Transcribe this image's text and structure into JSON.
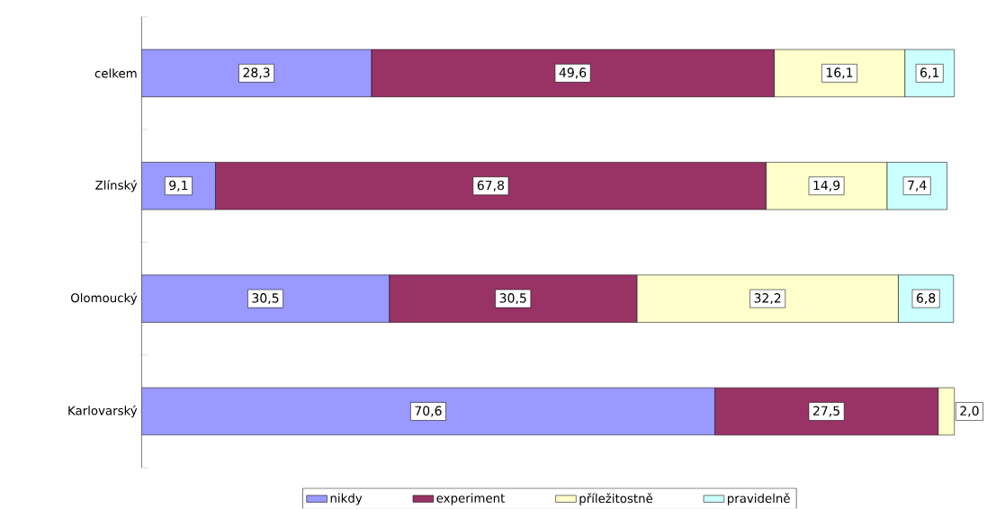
{
  "chart_data": {
    "type": "bar",
    "orientation": "horizontal",
    "stacked": true,
    "categories": [
      "celkem",
      "Zlínský",
      "Olomoucký",
      "Karlovarský"
    ],
    "xlim": [
      0,
      100.5
    ],
    "legend": "bottom",
    "series": [
      {
        "name": "nikdy",
        "color": "#9999ff",
        "values": [
          28.3,
          9.1,
          30.5,
          70.6
        ],
        "value_labels": [
          "28,3",
          "9,1",
          "30,5",
          "70,6"
        ]
      },
      {
        "name": "experiment",
        "color": "#993366",
        "values": [
          49.6,
          67.8,
          30.5,
          27.5
        ],
        "value_labels": [
          "49,6",
          "67,8",
          "30,5",
          "27,5"
        ]
      },
      {
        "name": "příležitostně",
        "color": "#ffffcc",
        "values": [
          16.1,
          14.9,
          32.2,
          2.0
        ],
        "value_labels": [
          "16,1",
          "14,9",
          "32,2",
          "2,0"
        ]
      },
      {
        "name": "pravidelně",
        "color": "#ccffff",
        "values": [
          6.1,
          7.4,
          6.8,
          null
        ],
        "value_labels": [
          "6,1",
          "7,4",
          "6,8",
          null
        ]
      }
    ]
  }
}
